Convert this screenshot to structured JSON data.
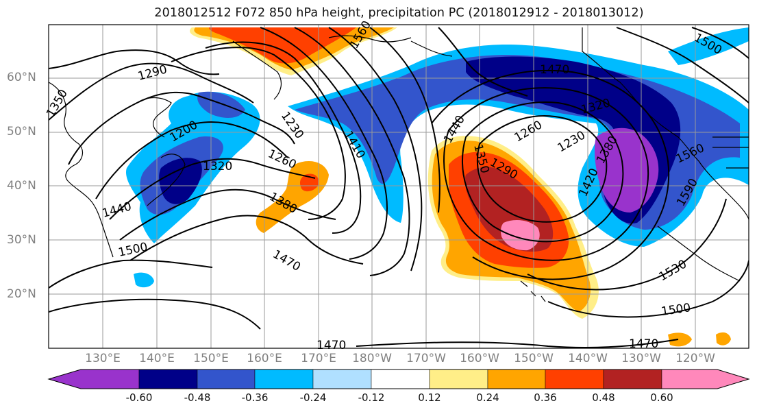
{
  "title": "2018012512 F072 850 hPa height, precipitation PC (2018012912 - 2018013012)",
  "latitude_labels": [
    "60°N",
    "50°N",
    "40°N",
    "30°N",
    "20°N"
  ],
  "longitude_labels": [
    "130°E",
    "140°E",
    "150°E",
    "160°E",
    "170°E",
    "180°W",
    "170°W",
    "160°W",
    "150°W",
    "140°W",
    "130°W",
    "120°W"
  ],
  "contour_labels": [
    "1290",
    "1350",
    "1200",
    "1320",
    "1230",
    "1410",
    "1260",
    "1380",
    "1440",
    "1500",
    "1470",
    "1440",
    "1260",
    "1350",
    "1290",
    "1470",
    "1320",
    "1380",
    "1230",
    "1420",
    "1560",
    "1590",
    "1530",
    "1500",
    "1470",
    "1560",
    "1500",
    "1470"
  ],
  "colorbar": {
    "tick_labels": [
      "-0.60",
      "-0.48",
      "-0.36",
      "-0.24",
      "-0.12",
      "0.12",
      "0.24",
      "0.36",
      "0.48",
      "0.60"
    ],
    "colors": [
      "#9933cc",
      "#000088",
      "#3355cc",
      "#00bbff",
      "#b0e0ff",
      "#ffffff",
      "#ffee88",
      "#ffa500",
      "#ff4000",
      "#b22222",
      "#ff88bb"
    ]
  }
}
